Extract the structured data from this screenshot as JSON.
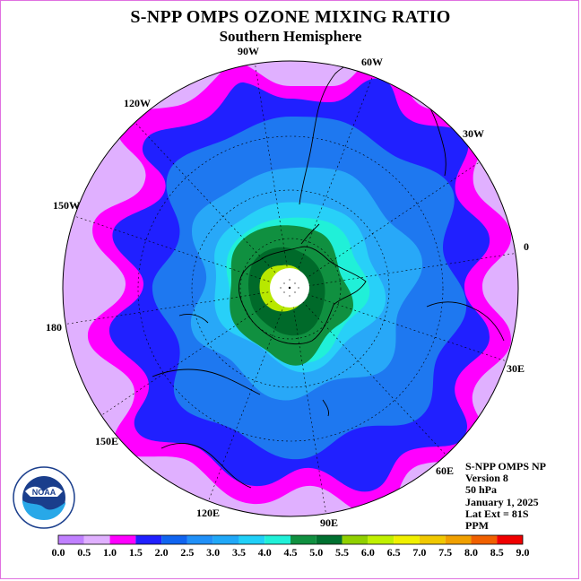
{
  "title": "S-NPP OMPS OZONE MIXING RATIO",
  "subtitle": "Southern Hemisphere",
  "longitude_labels": [
    "0",
    "30E",
    "60E",
    "90E",
    "120E",
    "150E",
    "180",
    "150W",
    "120W",
    "90W",
    "60W",
    "30W"
  ],
  "info": {
    "instrument": "S-NPP OMPS NP",
    "version": "Version 8",
    "level": "50 hPa",
    "date": "January 1, 2025",
    "lat_ext": "Lat Ext = 81S",
    "units": "PPM"
  },
  "logo_text": "NOAA",
  "colorbar": {
    "ticks": [
      "0.0",
      "0.5",
      "1.0",
      "1.5",
      "2.0",
      "2.5",
      "3.0",
      "3.5",
      "4.0",
      "4.5",
      "5.0",
      "5.5",
      "6.0",
      "6.5",
      "7.0",
      "7.5",
      "8.0",
      "8.5",
      "9.0"
    ],
    "colors": [
      "#c080ff",
      "#e0b0ff",
      "#ff00ff",
      "#2020ff",
      "#1064f0",
      "#2090f8",
      "#20a8f8",
      "#20d0f8",
      "#20f0d8",
      "#109040",
      "#007030",
      "#90d000",
      "#c0f000",
      "#f0f000",
      "#f0c800",
      "#f0a000",
      "#f06000",
      "#f00000",
      "#a06040"
    ]
  },
  "map_colors": {
    "lavender": "#e0b0ff",
    "magenta": "#ff00ff",
    "blue": "#2020ff",
    "mid_blue": "#1e78f0",
    "light_blue": "#28a8f8",
    "cyan": "#28d0f8",
    "aqua": "#20f0d8",
    "green": "#109040",
    "dark_green": "#006a2a",
    "yellow_green": "#b8e800"
  }
}
